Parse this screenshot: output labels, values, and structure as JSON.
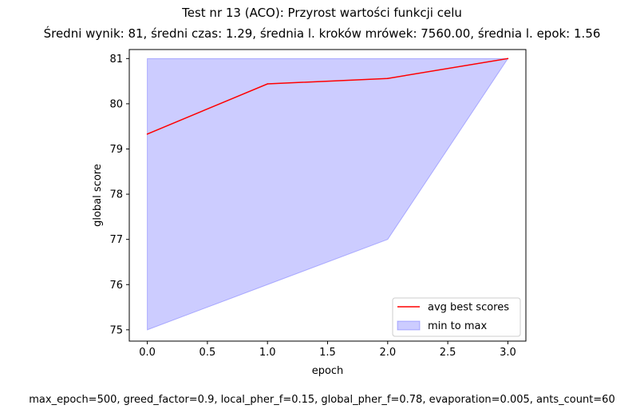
{
  "header": {
    "title": "Test nr 13 (ACO): Przyrost wartości funkcji celu",
    "subtitle": "Średni wynik: 81, średni czas: 1.29, średnia l. kroków mrówek: 7560.00, średnia l. epok: 1.56"
  },
  "footer": {
    "params": "max_epoch=500, greed_factor=0.9, local_pher_f=0.15, global_pher_f=0.78, evaporation=0.005, ants_count=60"
  },
  "chart_data": {
    "type": "line",
    "title": "Test nr 13 (ACO): Przyrost wartości funkcji celu",
    "subtitle": "Średni wynik: 81, średni czas: 1.29, średnia l. kroków mrówek: 7560.00, średnia l. epok: 1.56",
    "xlabel": "epoch",
    "ylabel": "global score",
    "xlim": [
      -0.15,
      3.15
    ],
    "ylim": [
      74.75,
      81.2
    ],
    "xticks": [
      0,
      0.5,
      1,
      1.5,
      2,
      2.5,
      3
    ],
    "xtick_labels": [
      "0.0",
      "0.5",
      "1.0",
      "1.5",
      "2.0",
      "2.5",
      "3.0"
    ],
    "yticks": [
      75,
      76,
      77,
      78,
      79,
      80,
      81
    ],
    "ytick_labels": [
      "75",
      "76",
      "77",
      "78",
      "79",
      "80",
      "81"
    ],
    "x": [
      0,
      1,
      2,
      3
    ],
    "series": [
      {
        "name": "avg best scores",
        "kind": "line",
        "color": "#ff0000",
        "values": [
          79.33,
          80.44,
          80.56,
          81.0
        ]
      },
      {
        "name": "min to max",
        "kind": "band",
        "color": "#0000ff",
        "min": [
          75,
          76,
          77,
          81
        ],
        "max": [
          81,
          81,
          81,
          81
        ]
      }
    ],
    "legend": {
      "placement": "bottom-right",
      "entries": [
        "avg best scores",
        "min to max"
      ]
    },
    "grid": false
  }
}
